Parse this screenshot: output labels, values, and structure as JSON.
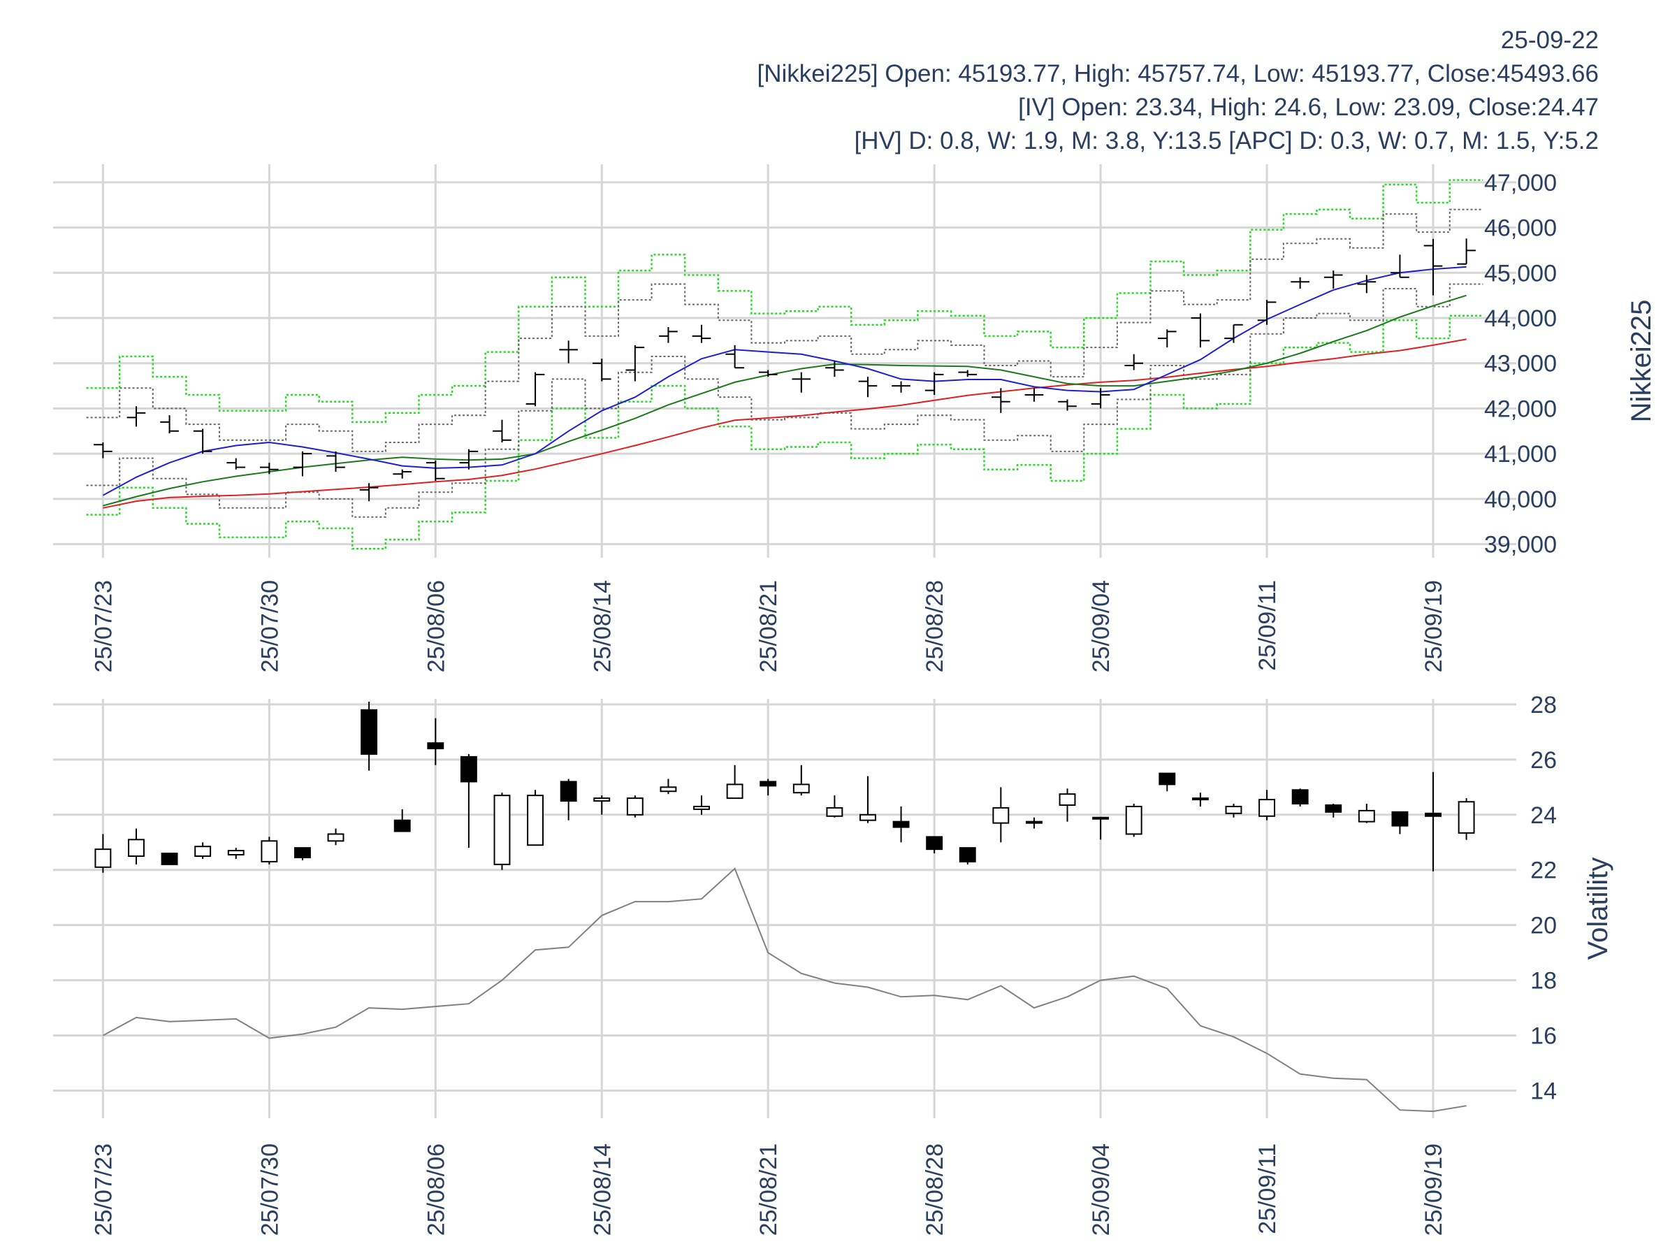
{
  "header": {
    "date": "25-09-22",
    "nikkei_line": "[Nikkei225] Open: 45193.77, High: 45757.74, Low: 45193.77, Close:45493.66",
    "iv_line": "[IV] Open: 23.34, High: 24.6, Low: 23.09, Close:24.47",
    "hv_line": "[HV] D: 0.8, W: 1.9, M: 3.8, Y:13.5 [APC] D: 0.3, W: 0.7, M: 1.5, Y:5.2"
  },
  "colors": {
    "text": "#2a3f5f",
    "grid": "#d6d6d6",
    "ma_short": "#1f1fd0",
    "ma_mid": "#1a7a1a",
    "ma_long": "#e02020",
    "band_outer": "#22dd22",
    "band_inner": "#666666",
    "hv_line": "#808080",
    "candle": "#000000"
  },
  "chart_data": [
    {
      "type": "ohlc",
      "name": "price",
      "ylabel": "Nikkei225",
      "ylim": [
        38700,
        47400
      ],
      "yticks": [
        39000,
        40000,
        41000,
        42000,
        43000,
        44000,
        45000,
        46000,
        47000
      ],
      "ytick_labels": [
        "39,000",
        "40,000",
        "41,000",
        "42,000",
        "43,000",
        "44,000",
        "45,000",
        "46,000",
        "47,000"
      ],
      "xticks": [
        0,
        5,
        10,
        15,
        20,
        25,
        30,
        35,
        40
      ],
      "xtick_labels": [
        "25/07/23",
        "25/07/30",
        "25/08/06",
        "25/08/14",
        "25/08/21",
        "25/08/28",
        "25/09/04",
        "25/09/11",
        "25/09/19"
      ],
      "x_count": 42,
      "ohlc": [
        [
          41200,
          41250,
          40900,
          41050
        ],
        [
          41800,
          42050,
          41600,
          41900
        ],
        [
          41700,
          41850,
          41450,
          41500
        ],
        [
          41500,
          41550,
          41000,
          41050
        ],
        [
          40800,
          40900,
          40650,
          40700
        ],
        [
          40700,
          40800,
          40550,
          40650
        ],
        [
          40700,
          41050,
          40500,
          41000
        ],
        [
          40950,
          41050,
          40600,
          40700
        ],
        [
          40200,
          40350,
          39950,
          40250
        ],
        [
          40550,
          40650,
          40450,
          40600
        ],
        [
          40800,
          40850,
          40400,
          40450
        ],
        [
          40800,
          41100,
          40650,
          41050
        ],
        [
          41500,
          41750,
          41250,
          41300
        ],
        [
          42100,
          42800,
          42050,
          42750
        ],
        [
          43300,
          43500,
          43000,
          43300
        ],
        [
          43000,
          43100,
          42600,
          42650
        ],
        [
          42850,
          43400,
          42600,
          43350
        ],
        [
          43600,
          43800,
          43450,
          43700
        ],
        [
          43600,
          43850,
          43450,
          43550
        ],
        [
          43200,
          43400,
          42900,
          42900
        ],
        [
          42800,
          42850,
          42700,
          42750
        ],
        [
          42650,
          42800,
          42350,
          42650
        ],
        [
          42900,
          43050,
          42700,
          42850
        ],
        [
          42600,
          42700,
          42250,
          42500
        ],
        [
          42500,
          42600,
          42350,
          42500
        ],
        [
          42400,
          42800,
          42300,
          42750
        ],
        [
          42800,
          42850,
          42700,
          42750
        ],
        [
          42250,
          42450,
          41900,
          42150
        ],
        [
          42300,
          42450,
          42150,
          42300
        ],
        [
          42150,
          42200,
          41950,
          42050
        ],
        [
          42100,
          42450,
          42000,
          42300
        ],
        [
          42950,
          43200,
          42850,
          43000
        ],
        [
          43550,
          43750,
          43350,
          43700
        ],
        [
          44000,
          44100,
          43350,
          43500
        ],
        [
          43550,
          43850,
          43450,
          43850
        ],
        [
          43950,
          44400,
          43850,
          44350
        ],
        [
          44800,
          44900,
          44650,
          44800
        ],
        [
          44900,
          45050,
          44650,
          44950
        ],
        [
          44750,
          44950,
          44550,
          44800
        ],
        [
          45000,
          45400,
          44900,
          44900
        ],
        [
          45600,
          45750,
          44500,
          45150
        ],
        [
          45194,
          45758,
          45194,
          45494
        ]
      ],
      "ma_short": [
        40080,
        40480,
        40800,
        41050,
        41180,
        41250,
        41150,
        41020,
        40880,
        40730,
        40680,
        40700,
        40750,
        41000,
        41500,
        41950,
        42250,
        42700,
        43100,
        43300,
        43250,
        43200,
        43050,
        42880,
        42650,
        42600,
        42640,
        42640,
        42480,
        42400,
        42370,
        42420,
        42750,
        43080,
        43550,
        43970,
        44300,
        44620,
        44830,
        45000,
        45080,
        45130
      ],
      "ma_mid": [
        39850,
        40050,
        40230,
        40380,
        40500,
        40600,
        40700,
        40780,
        40860,
        40920,
        40880,
        40860,
        40880,
        41000,
        41270,
        41520,
        41780,
        42080,
        42330,
        42580,
        42740,
        42880,
        42980,
        42970,
        42950,
        42940,
        42930,
        42850,
        42700,
        42550,
        42500,
        42500,
        42600,
        42700,
        42830,
        43000,
        43220,
        43480,
        43720,
        44020,
        44270,
        44500
      ],
      "ma_long": [
        39800,
        39950,
        40030,
        40060,
        40080,
        40110,
        40160,
        40210,
        40260,
        40320,
        40380,
        40430,
        40520,
        40660,
        40830,
        41000,
        41180,
        41370,
        41570,
        41740,
        41790,
        41840,
        41920,
        41990,
        42070,
        42180,
        42290,
        42370,
        42450,
        42520,
        42580,
        42620,
        42690,
        42780,
        42860,
        42930,
        43020,
        43100,
        43200,
        43280,
        43400,
        43530
      ],
      "band_outer_upper": [
        42450,
        43150,
        42700,
        42300,
        41950,
        41950,
        42300,
        42150,
        41700,
        41900,
        42300,
        42500,
        43250,
        44250,
        44900,
        44250,
        45050,
        45400,
        44950,
        44600,
        44100,
        44150,
        44250,
        43850,
        43950,
        44150,
        44050,
        43600,
        43700,
        43350,
        44000,
        44550,
        45250,
        44950,
        45050,
        45950,
        46300,
        46400,
        46200,
        46950,
        46550,
        47050
      ],
      "band_inner_upper": [
        41800,
        42450,
        42000,
        41650,
        41300,
        41300,
        41650,
        41500,
        41050,
        41250,
        41650,
        41850,
        42600,
        43550,
        44250,
        43600,
        44400,
        44750,
        44300,
        43950,
        43450,
        43500,
        43600,
        43200,
        43300,
        43500,
        43400,
        42950,
        43050,
        42700,
        43350,
        43900,
        44600,
        44300,
        44400,
        45300,
        45650,
        45750,
        45550,
        46300,
        45900,
        46400
      ],
      "band_inner_lower": [
        40300,
        40900,
        40450,
        40100,
        39800,
        39800,
        40150,
        40000,
        39600,
        39800,
        40150,
        40350,
        41100,
        41950,
        42650,
        42000,
        42800,
        43150,
        42650,
        42250,
        41750,
        41800,
        41900,
        41550,
        41650,
        41850,
        41750,
        41300,
        41400,
        41050,
        41650,
        42200,
        42950,
        42650,
        42750,
        43650,
        44000,
        44100,
        43950,
        44650,
        44250,
        44750
      ],
      "band_outer_lower": [
        39650,
        40250,
        39800,
        39450,
        39150,
        39150,
        39500,
        39350,
        38900,
        39100,
        39500,
        39700,
        40400,
        41300,
        42000,
        41350,
        42150,
        42500,
        42000,
        41600,
        41100,
        41150,
        41250,
        40900,
        41000,
        41200,
        41100,
        40650,
        40750,
        40400,
        41000,
        41550,
        42300,
        42000,
        42100,
        43000,
        43350,
        43450,
        43250,
        43950,
        43550,
        44050
      ]
    },
    {
      "type": "candlestick",
      "name": "volatility",
      "ylabel": "Volatility",
      "ylim": [
        13,
        28.2
      ],
      "yticks": [
        14,
        16,
        18,
        20,
        22,
        24,
        26,
        28
      ],
      "ytick_labels": [
        "14",
        "16",
        "18",
        "20",
        "22",
        "24",
        "26",
        "28"
      ],
      "xticks": [
        0,
        5,
        10,
        15,
        20,
        25,
        30,
        35,
        40
      ],
      "xtick_labels": [
        "25/07/23",
        "25/07/30",
        "25/08/06",
        "25/08/14",
        "25/08/21",
        "25/08/28",
        "25/09/04",
        "25/09/11",
        "25/09/19"
      ],
      "ohlc": [
        [
          22.1,
          23.3,
          21.9,
          22.75
        ],
        [
          22.5,
          23.5,
          22.2,
          23.1
        ],
        [
          22.6,
          22.6,
          22.2,
          22.2
        ],
        [
          22.5,
          23.0,
          22.4,
          22.85
        ],
        [
          22.55,
          22.8,
          22.4,
          22.7
        ],
        [
          22.3,
          23.2,
          22.2,
          23.05
        ],
        [
          22.8,
          22.8,
          22.35,
          22.45
        ],
        [
          23.05,
          23.5,
          22.9,
          23.3
        ],
        [
          27.8,
          28.1,
          25.6,
          26.2
        ],
        [
          23.8,
          24.2,
          23.4,
          23.4
        ],
        [
          26.6,
          27.5,
          25.8,
          26.4
        ],
        [
          26.1,
          26.2,
          22.8,
          25.2
        ],
        [
          22.2,
          24.8,
          22.0,
          24.7
        ],
        [
          22.9,
          24.9,
          22.9,
          24.7
        ],
        [
          25.2,
          25.3,
          23.8,
          24.5
        ],
        [
          24.5,
          24.7,
          24.0,
          24.6
        ],
        [
          24.0,
          24.7,
          23.9,
          24.6
        ],
        [
          24.85,
          25.3,
          24.75,
          25.0
        ],
        [
          24.2,
          24.7,
          24.0,
          24.3
        ],
        [
          24.6,
          25.8,
          24.6,
          25.1
        ],
        [
          25.2,
          25.3,
          24.7,
          25.05
        ],
        [
          24.8,
          25.8,
          24.7,
          25.1
        ],
        [
          23.95,
          24.7,
          23.9,
          24.25
        ],
        [
          23.8,
          25.4,
          23.7,
          24.0
        ],
        [
          23.75,
          24.3,
          23.0,
          23.55
        ],
        [
          23.2,
          23.2,
          22.6,
          22.75
        ],
        [
          22.8,
          22.8,
          22.2,
          22.3
        ],
        [
          23.7,
          25.0,
          23.0,
          24.25
        ],
        [
          23.75,
          23.9,
          23.5,
          23.75
        ],
        [
          24.35,
          24.95,
          23.75,
          24.75
        ],
        [
          23.9,
          23.9,
          23.1,
          23.85
        ],
        [
          23.3,
          24.4,
          23.2,
          24.3
        ],
        [
          25.5,
          25.5,
          24.85,
          25.1
        ],
        [
          24.6,
          24.8,
          24.3,
          24.55
        ],
        [
          24.05,
          24.4,
          23.9,
          24.3
        ],
        [
          23.95,
          24.9,
          23.8,
          24.55
        ],
        [
          24.9,
          24.95,
          24.3,
          24.4
        ],
        [
          24.35,
          24.4,
          23.9,
          24.1
        ],
        [
          23.75,
          24.4,
          23.7,
          24.15
        ],
        [
          24.1,
          24.1,
          23.3,
          23.6
        ],
        [
          24.05,
          25.55,
          21.95,
          23.95
        ],
        [
          23.34,
          24.6,
          23.09,
          24.47
        ]
      ],
      "hv_line": [
        16.0,
        16.65,
        16.5,
        16.55,
        16.6,
        15.9,
        16.05,
        16.3,
        17.0,
        16.95,
        17.05,
        17.15,
        18.0,
        19.1,
        19.2,
        20.35,
        20.85,
        20.85,
        20.95,
        22.05,
        19.0,
        18.25,
        17.9,
        17.75,
        17.4,
        17.45,
        17.3,
        17.8,
        17.0,
        17.4,
        18.0,
        18.15,
        17.7,
        16.35,
        15.95,
        15.35,
        14.6,
        14.45,
        14.4,
        13.3,
        13.25,
        13.45
      ]
    }
  ]
}
